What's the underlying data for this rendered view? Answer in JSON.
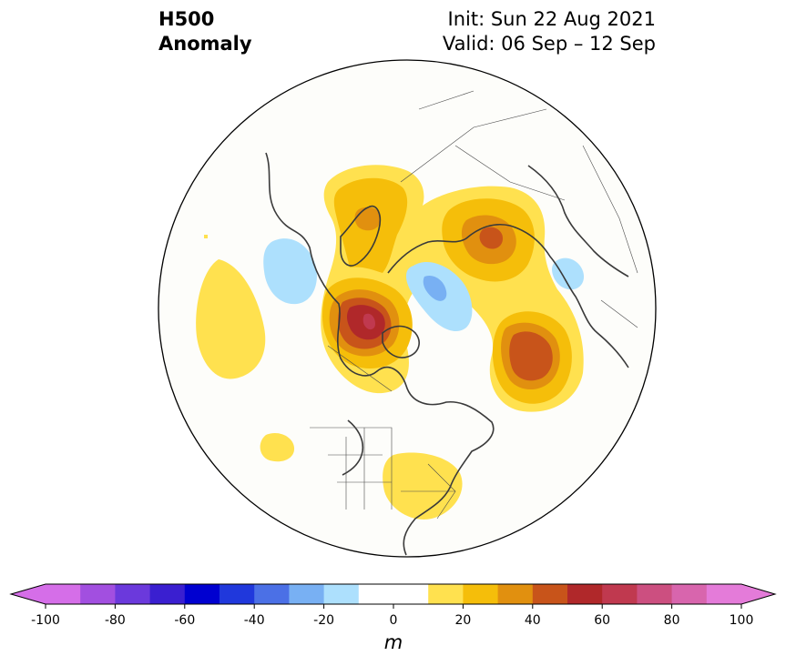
{
  "title": {
    "left_line1": "H500",
    "left_line2": "Anomaly",
    "right_line1": "Init: Sun 22 Aug 2021",
    "right_line2": "Valid: 06 Sep – 12 Sep"
  },
  "map": {
    "projection": "north-polar-stereographic",
    "background": "#fdfdfa",
    "coastline_color": "#3a3a3a",
    "anomaly_regions": [
      {
        "name": "greenland-ridge",
        "level": 20
      },
      {
        "name": "western-russia-ridge",
        "level": 50
      },
      {
        "name": "arctic-canada-ridge",
        "level": 60
      },
      {
        "name": "east-asia-ridge",
        "level": 40
      },
      {
        "name": "eastern-us-ridge",
        "level": 10
      },
      {
        "name": "gulf-of-alaska-ridge",
        "level": 10
      },
      {
        "name": "central-pacific-ridge",
        "level": 10
      },
      {
        "name": "beaufort-trough",
        "level": -30
      },
      {
        "name": "north-atlantic-trough",
        "level": -20
      },
      {
        "name": "east-siberia-trough",
        "level": -20
      }
    ]
  },
  "colorbar": {
    "unit": "m",
    "ticks": [
      "-100",
      "-80",
      "-60",
      "-40",
      "-20",
      "0",
      "20",
      "40",
      "60",
      "80",
      "100"
    ],
    "colors": [
      "#d56ee8",
      "#a24fe0",
      "#6b39dc",
      "#3a1fd0",
      "#0000d0",
      "#2038dc",
      "#4b70e6",
      "#78b0f3",
      "#ade0fd",
      "#ffffff",
      "#ffffff",
      "#ffe14f",
      "#f5be0a",
      "#e1900f",
      "#c8541a",
      "#b0282a",
      "#c0394f",
      "#cc4f80",
      "#d865ad",
      "#e47bd9"
    ],
    "under_color": "#d56ee8",
    "over_color": "#e47bd9"
  }
}
